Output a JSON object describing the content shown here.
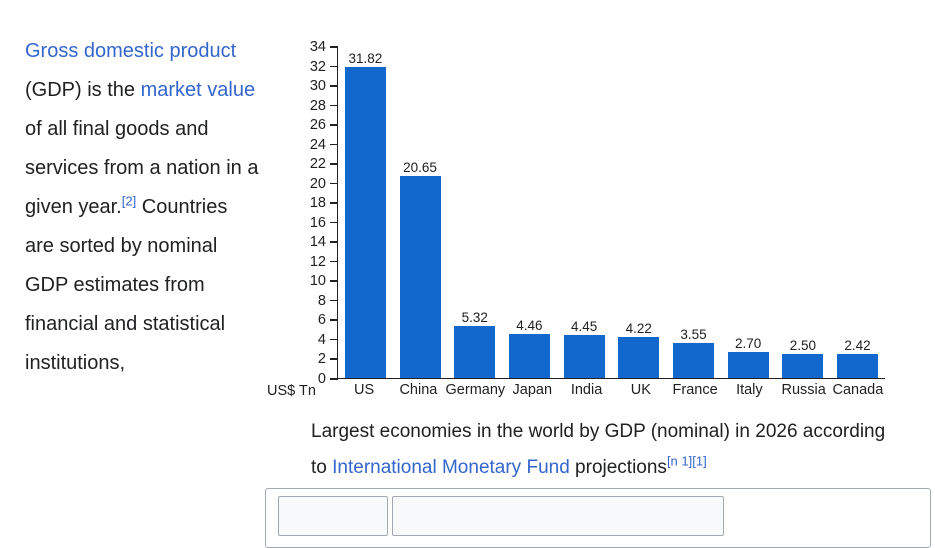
{
  "article": {
    "link_gdp": "Gross domestic product",
    "text_1": " (GDP) is the ",
    "link_market_value": "market value",
    "text_2": " of all final goods and services from a nation in a given year.",
    "ref_2": "[2]",
    "text_3": " Countries are sorted by nominal GDP estimates from financial and statistical institutions,"
  },
  "chart": {
    "unit_label": "US$ Tn",
    "caption": {
      "text_before": "Largest economies in the world by GDP (nominal) in 2026 according to ",
      "link_imf": "International Monetary Fund",
      "text_after": " projections",
      "ref_n1": "[n 1]",
      "ref_1": "[1]"
    }
  },
  "chart_data": {
    "type": "bar",
    "categories": [
      "US",
      "China",
      "Germany",
      "Japan",
      "India",
      "UK",
      "France",
      "Italy",
      "Russia",
      "Canada"
    ],
    "values": [
      31.82,
      20.65,
      5.32,
      4.46,
      4.45,
      4.22,
      3.55,
      2.7,
      2.5,
      2.42
    ],
    "value_labels": [
      "31.82",
      "20.65",
      "5.32",
      "4.46",
      "4.45",
      "4.22",
      "3.55",
      "2.70",
      "2.50",
      "2.42"
    ],
    "title": "",
    "xlabel": "",
    "ylabel": "US$ Tn",
    "ylim": [
      0,
      34
    ],
    "ytick_step": 2,
    "grid": false,
    "legend": "none",
    "bar_color": "#1368ce",
    "axis_color": "#202122"
  },
  "colors": {
    "link": "#3366cc",
    "text": "#202122",
    "border": "#a2a9b1"
  }
}
